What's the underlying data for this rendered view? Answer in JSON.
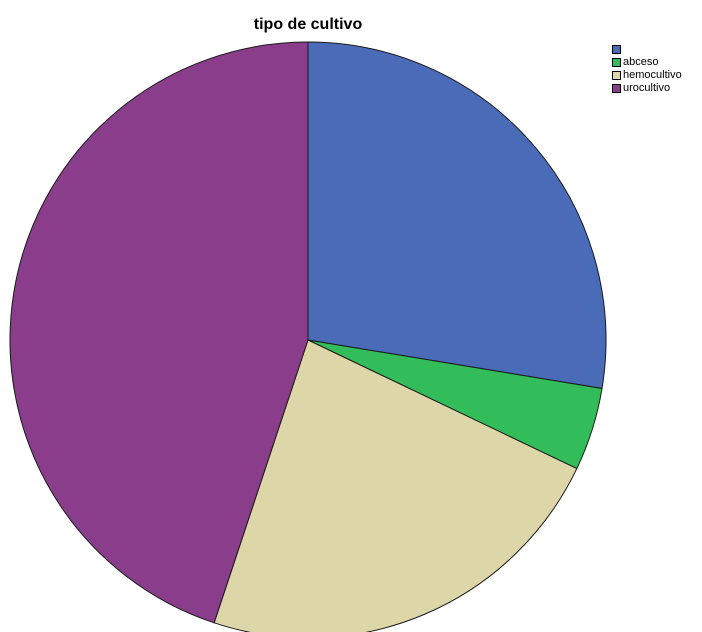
{
  "chart_data": {
    "type": "pie",
    "title": "tipo de cultivo",
    "legend_position": "top-right",
    "start_angle_deg": 0,
    "direction": "clockwise",
    "slices": [
      {
        "label": "",
        "value": 27.6,
        "color": "#4a6bb8"
      },
      {
        "label": "abceso",
        "value": 4.5,
        "color": "#33bd5a"
      },
      {
        "label": "hemocultivo",
        "value": 23.0,
        "color": "#dcd6a8"
      },
      {
        "label": "urocultivo",
        "value": 44.9,
        "color": "#8a3d8b"
      }
    ]
  }
}
